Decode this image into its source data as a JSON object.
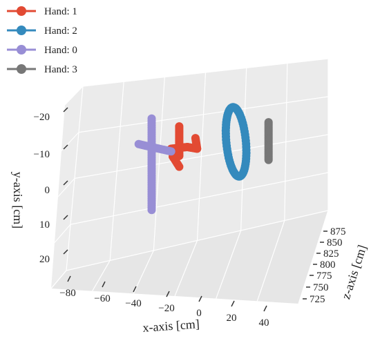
{
  "chart_data": {
    "type": "scatter",
    "projection": "3d",
    "xlabel": "x-axis [cm]",
    "ylabel": "y-axis [cm]",
    "zlabel": "z-axis [cm]",
    "x_ticks": [
      "−80",
      "−60",
      "−40",
      "−20",
      "0",
      "20",
      "40"
    ],
    "y_ticks": [
      "−20",
      "−10",
      "0",
      "10",
      "20"
    ],
    "z_ticks": [
      "725",
      "750",
      "775",
      "800",
      "825",
      "850",
      "875"
    ],
    "xlim": [
      -85,
      45
    ],
    "ylim": [
      -22,
      25
    ],
    "zlim": [
      715,
      885
    ],
    "grid": true,
    "legend_position": "top-left",
    "series": [
      {
        "name": "Hand: 1",
        "color": "#e24a33",
        "shape": "digit-4-stroke",
        "points": [
          [
            -18,
            -10,
            800
          ],
          [
            -8,
            -10,
            800
          ],
          [
            -13,
            -18,
            800
          ],
          [
            -13,
            -7,
            800
          ],
          [
            -13,
            -3,
            800
          ],
          [
            -17,
            -7,
            800
          ],
          [
            -3,
            -13,
            800
          ],
          [
            -2,
            -9,
            800
          ]
        ]
      },
      {
        "name": "Hand: 2",
        "color": "#348abd",
        "shape": "ellipse-loop",
        "center": [
          22,
          -10,
          800
        ],
        "radii": [
          6,
          13
        ]
      },
      {
        "name": "Hand: 0",
        "color": "#988ed5",
        "shape": "plus-stroke",
        "points": [
          [
            -30,
            -22,
            800
          ],
          [
            -30,
            12,
            800
          ],
          [
            -38,
            -13,
            800
          ],
          [
            -18,
            -9,
            800
          ]
        ]
      },
      {
        "name": "Hand: 3",
        "color": "#777777",
        "shape": "vertical-line",
        "points": [
          [
            42,
            -16,
            800
          ],
          [
            42,
            -2,
            800
          ]
        ]
      }
    ]
  }
}
